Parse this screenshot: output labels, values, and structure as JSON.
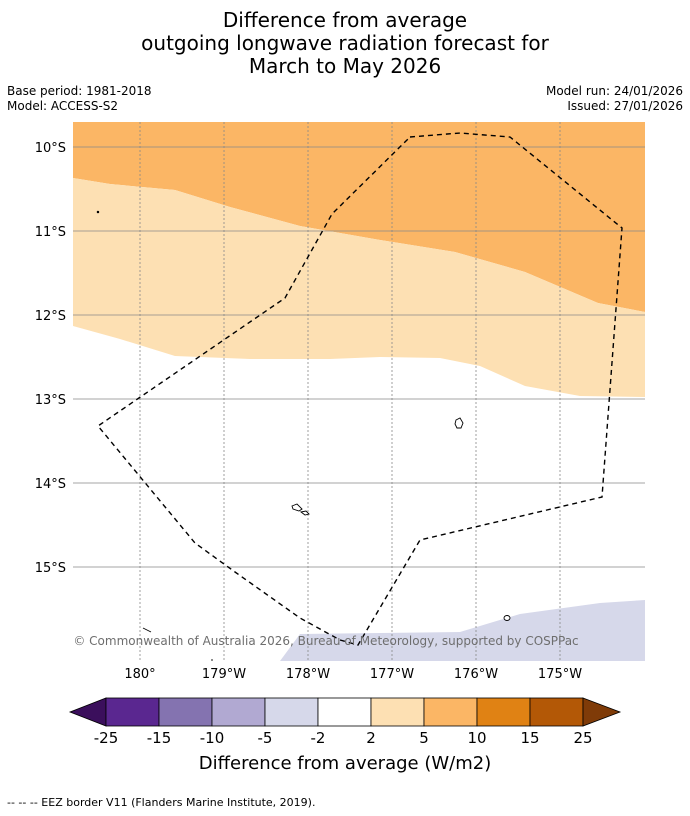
{
  "header": {
    "title_line1": "Difference from average",
    "title_line2": "outgoing longwave radiation forecast for",
    "title_line3": "March to May 2026",
    "base_period": "Base period: 1981-2018",
    "model": "Model: ACCESS-S2",
    "model_run": "Model run: 24/01/2026",
    "issued": "Issued: 27/01/2026"
  },
  "map": {
    "lat_labels": [
      "10°S",
      "11°S",
      "12°S",
      "13°S",
      "14°S",
      "15°S"
    ],
    "lon_labels": [
      "180°",
      "179°W",
      "178°W",
      "177°W",
      "176°W",
      "175°W"
    ],
    "copyright": "© Commonwealth of Australia 2026, Bureau of Meteorology, supported by COSPPac",
    "colors": {
      "orange": "#fbb665",
      "light_orange": "#fde0b3",
      "lavender": "#d6d8ea",
      "grid": "#888888"
    }
  },
  "colorbar": {
    "ticks": [
      "-25",
      "-15",
      "-10",
      "-5",
      "-2",
      "2",
      "5",
      "10",
      "15",
      "25"
    ],
    "colors": [
      "#3b0f5c",
      "#5a2790",
      "#8473b0",
      "#b1a9d2",
      "#d6d8ea",
      "#ffffff",
      "#fde0b3",
      "#fbb665",
      "#e08214",
      "#b35806",
      "#7f3b08"
    ],
    "label": "Difference from average (W/m2)"
  },
  "footer": {
    "legend": "--  --  -- EEZ border V11 (Flanders Marine Institute, 2019)."
  }
}
